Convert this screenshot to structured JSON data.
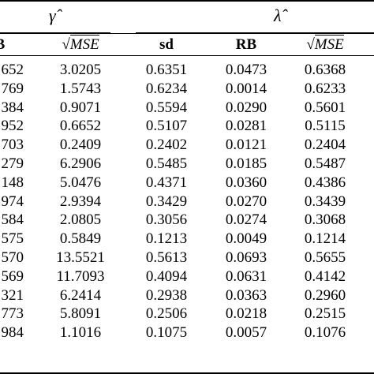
{
  "table": {
    "groups": [
      {
        "symbol": "γ̂"
      },
      {
        "symbol": "λ̂"
      }
    ],
    "headers": [
      "B",
      "√",
      "MSE",
      "sd",
      "RB",
      "√",
      "MSE"
    ],
    "rows": [
      [
        "652",
        "3.0205",
        "0.6351",
        "0.0473",
        "0.6368"
      ],
      [
        "769",
        "1.5743",
        "0.6234",
        "0.0014",
        "0.6233"
      ],
      [
        "384",
        "0.9071",
        "0.5594",
        "0.0290",
        "0.5601"
      ],
      [
        "952",
        "0.6652",
        "0.5107",
        "0.0281",
        "0.5115"
      ],
      [
        "703",
        "0.2409",
        "0.2402",
        "0.0121",
        "0.2404"
      ],
      [
        "279",
        "6.2906",
        "0.5485",
        "0.0185",
        "0.5487"
      ],
      [
        "148",
        "5.0476",
        "0.4371",
        "0.0360",
        "0.4386"
      ],
      [
        "974",
        "2.9394",
        "0.3429",
        "0.0270",
        "0.3439"
      ],
      [
        "584",
        "2.0805",
        "0.3056",
        "0.0274",
        "0.3068"
      ],
      [
        "575",
        "0.5849",
        "0.1213",
        "0.0049",
        "0.1214"
      ],
      [
        "570",
        "13.5521",
        "0.5613",
        "0.0693",
        "0.5655"
      ],
      [
        "569",
        "11.7093",
        "0.4094",
        "0.0631",
        "0.4142"
      ],
      [
        "321",
        "6.2414",
        "0.2938",
        "0.0363",
        "0.2960"
      ],
      [
        "773",
        "5.8091",
        "0.2506",
        "0.0218",
        "0.2515"
      ],
      [
        "984",
        "1.1016",
        "0.1075",
        "0.0057",
        "0.1076"
      ]
    ]
  }
}
